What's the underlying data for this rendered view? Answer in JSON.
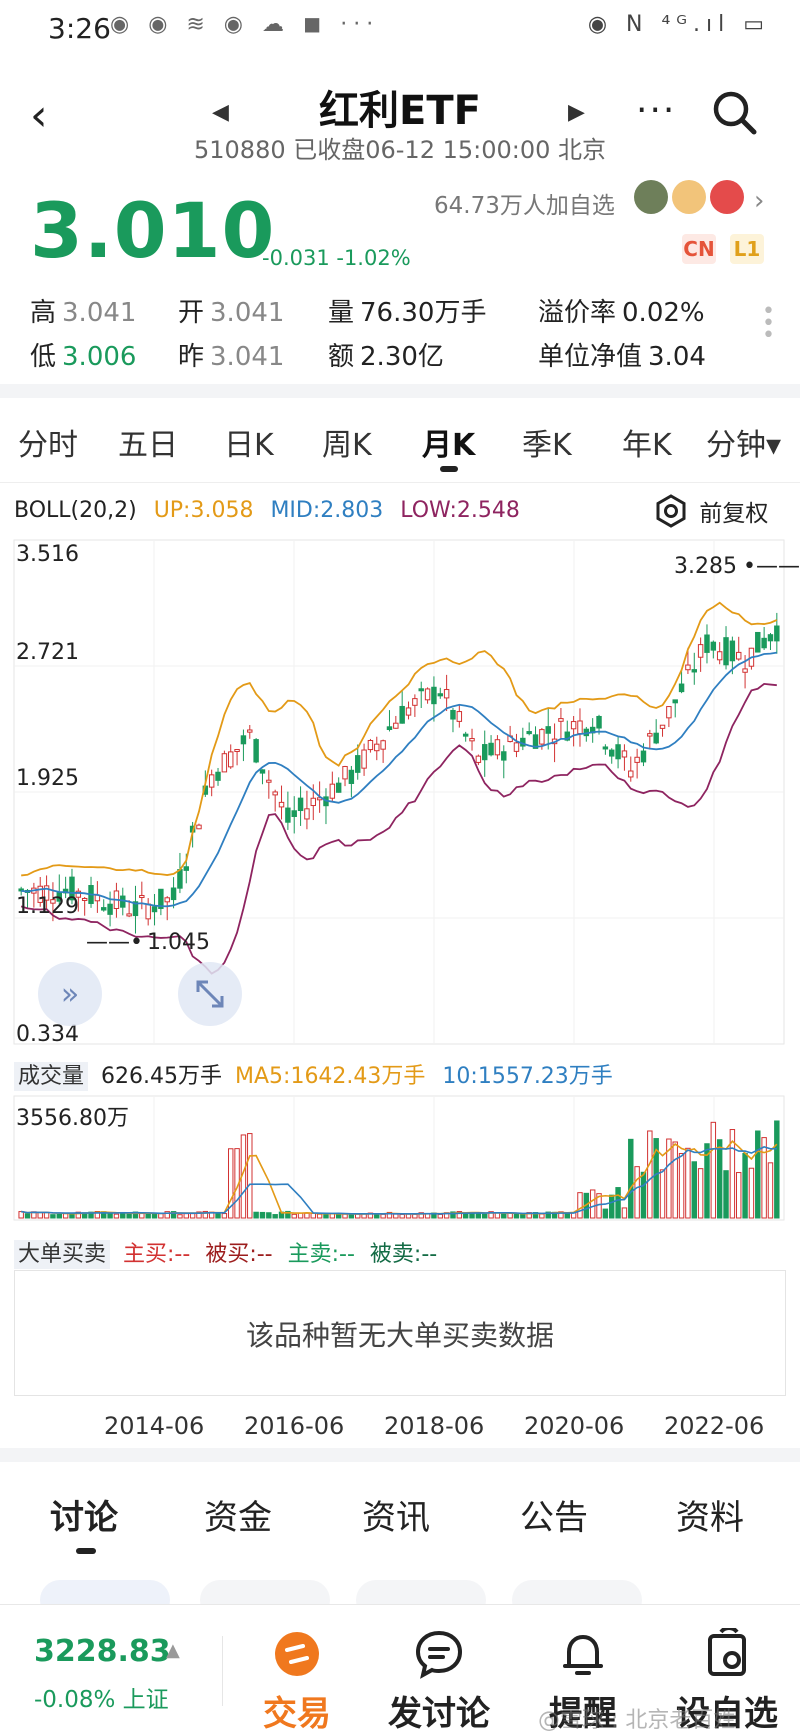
{
  "status_bar": {
    "time": "3:26",
    "left_icons": "◉ ◉ ≋ ◉ ☁ ◼ ···",
    "right_icons": "◉ N ⁴ᴳ.ıl ▭"
  },
  "header": {
    "title": "红利ETF",
    "subtitle": "510880 已收盘06-12 15:00:00 北京",
    "back_icon": "‹",
    "prev_icon": "◀",
    "next_icon": "▶",
    "more_icon": "···"
  },
  "quote": {
    "price": "3.010",
    "change": "-0.031 -1.02%",
    "favorites": "64.73万人加自选",
    "tag_cn": "CN",
    "tag_l1": "L1",
    "stats": {
      "high_label": "高",
      "high": "3.041",
      "open_label": "开",
      "open": "3.041",
      "volume_label": "量",
      "volume": "76.30万手",
      "premium_label": "溢价率",
      "premium": "0.02%",
      "low_label": "低",
      "low": "3.006",
      "prev_label": "昨",
      "prev": "3.041",
      "amount_label": "额",
      "amount": "2.30亿",
      "nav_label": "单位净值",
      "nav": "3.04"
    }
  },
  "period_tabs": [
    "分时",
    "五日",
    "日K",
    "周K",
    "月K",
    "季K",
    "年K",
    "分钟▾"
  ],
  "active_period": "月K",
  "indicator": {
    "name": "BOLL(20,2)",
    "up": "UP:3.058",
    "mid": "MID:2.803",
    "low": "LOW:2.548",
    "adjust_label": "前复权"
  },
  "price_axis": {
    "top": "3.516",
    "upper": "2.721",
    "middle": "1.925",
    "lower": "1.129",
    "bottom": "0.334"
  },
  "annotations": {
    "max": "3.285",
    "min": "1.045"
  },
  "volume_legend": {
    "label": "成交量",
    "value": "626.45万手",
    "ma5": "MA5:1642.43万手",
    "ma10": "10:1557.23万手",
    "axis_max": "3556.80万"
  },
  "big_order": {
    "label": "大单买卖",
    "main_buy": "主买:--",
    "passive_buy": "被买:--",
    "main_sell": "主卖:--",
    "passive_sell": "被卖:--",
    "empty_text": "该品种暂无大单买卖数据"
  },
  "x_axis": [
    "2014-06",
    "2016-06",
    "2018-06",
    "2020-06",
    "2022-06"
  ],
  "bottom_tabs": [
    "讨论",
    "资金",
    "资讯",
    "公告",
    "资料"
  ],
  "dock": {
    "index_value": "3228.83",
    "index_change": "-0.08% 上证",
    "trade": "交易",
    "discuss": "发讨论",
    "remind": "提醒",
    "watchlist": "设自选"
  },
  "watermark": "@雪球 : 北京老百姓",
  "colors": {
    "green": "#1a9a5c",
    "red": "#d23232",
    "up_band": "#e39a17",
    "mid_band": "#2f7fc1",
    "low_band": "#8e2460"
  }
}
